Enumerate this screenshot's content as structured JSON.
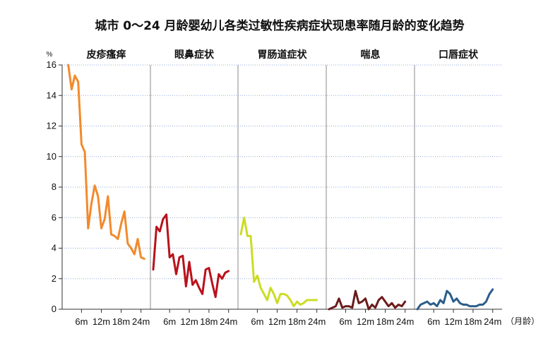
{
  "chart_data": {
    "type": "line",
    "title": "城市 0～24 月龄婴幼儿各类过敏性疾病症状现患率随月龄的变化趋势",
    "y_unit": "%",
    "x_unit": "（月龄）",
    "ylim": [
      0,
      16
    ],
    "y_ticks": [
      "0",
      "2",
      "4",
      "6",
      "8",
      "10",
      "12",
      "14",
      "16"
    ],
    "grid": true,
    "x_tick_labels": [
      "6m",
      "12m",
      "18m",
      "24m"
    ],
    "x_tick_months": [
      6,
      12,
      18,
      24
    ],
    "x_range": [
      1,
      26
    ],
    "series": [
      {
        "name": "皮疹瘙痒",
        "color": "#F28A2C",
        "x": [
          2,
          3,
          4,
          5,
          6,
          7,
          8,
          9,
          10,
          11,
          12,
          13,
          14,
          15,
          16,
          17,
          18,
          19,
          20,
          21,
          22,
          23,
          24,
          25
        ],
        "y": [
          16.0,
          14.4,
          15.3,
          14.9,
          10.8,
          10.3,
          5.3,
          6.9,
          8.1,
          7.4,
          5.3,
          5.9,
          7.4,
          4.9,
          4.8,
          4.6,
          5.6,
          6.4,
          4.3,
          4.0,
          3.6,
          4.6,
          3.4,
          3.3
        ]
      },
      {
        "name": "眼鼻症状",
        "color": "#B8121C",
        "x": [
          1,
          2,
          3,
          4,
          5,
          6,
          7,
          8,
          9,
          10,
          11,
          12,
          13,
          14,
          15,
          16,
          17,
          18,
          19,
          20,
          21,
          22,
          23,
          24
        ],
        "y": [
          2.6,
          5.4,
          5.1,
          5.9,
          6.2,
          3.4,
          3.6,
          2.3,
          3.4,
          3.5,
          1.5,
          3.1,
          1.6,
          1.9,
          1.4,
          1.0,
          2.6,
          2.7,
          1.7,
          0.8,
          2.3,
          2.0,
          2.4,
          2.5
        ]
      },
      {
        "name": "胃肠道症状",
        "color": "#CCDC26",
        "x": [
          1,
          2,
          3,
          4,
          5,
          6,
          7,
          8,
          9,
          10,
          11,
          12,
          13,
          14,
          15,
          16,
          17,
          18,
          19,
          20,
          21,
          22,
          23,
          24
        ],
        "y": [
          4.9,
          6.0,
          4.8,
          4.8,
          1.8,
          2.2,
          1.4,
          1.0,
          0.6,
          1.4,
          1.0,
          0.4,
          1.0,
          1.0,
          0.9,
          0.6,
          0.2,
          0.5,
          0.3,
          0.4,
          0.6,
          0.6,
          0.6,
          0.6
        ]
      },
      {
        "name": "喘息",
        "color": "#6B1B1B",
        "x": [
          1,
          2,
          3,
          4,
          5,
          6,
          7,
          8,
          9,
          10,
          11,
          12,
          13,
          14,
          15,
          16,
          17,
          18,
          19,
          20,
          21,
          22,
          23,
          24
        ],
        "y": [
          0.0,
          0.1,
          0.2,
          0.7,
          0.1,
          0.2,
          0.2,
          0.1,
          1.2,
          0.4,
          0.5,
          0.7,
          0.0,
          0.3,
          0.1,
          0.6,
          0.8,
          0.5,
          0.2,
          0.4,
          0.1,
          0.3,
          0.2,
          0.5
        ]
      },
      {
        "name": "口唇症状",
        "color": "#2B5D8A",
        "x": [
          1,
          2,
          3,
          4,
          5,
          6,
          7,
          8,
          9,
          10,
          11,
          12,
          13,
          14,
          15,
          16,
          17,
          18,
          19,
          20,
          21,
          22,
          23,
          24
        ],
        "y": [
          0.0,
          0.3,
          0.4,
          0.5,
          0.3,
          0.4,
          0.2,
          0.6,
          0.4,
          1.2,
          1.0,
          0.5,
          0.7,
          0.4,
          0.3,
          0.3,
          0.2,
          0.2,
          0.2,
          0.3,
          0.3,
          0.5,
          1.0,
          1.3
        ]
      }
    ]
  }
}
